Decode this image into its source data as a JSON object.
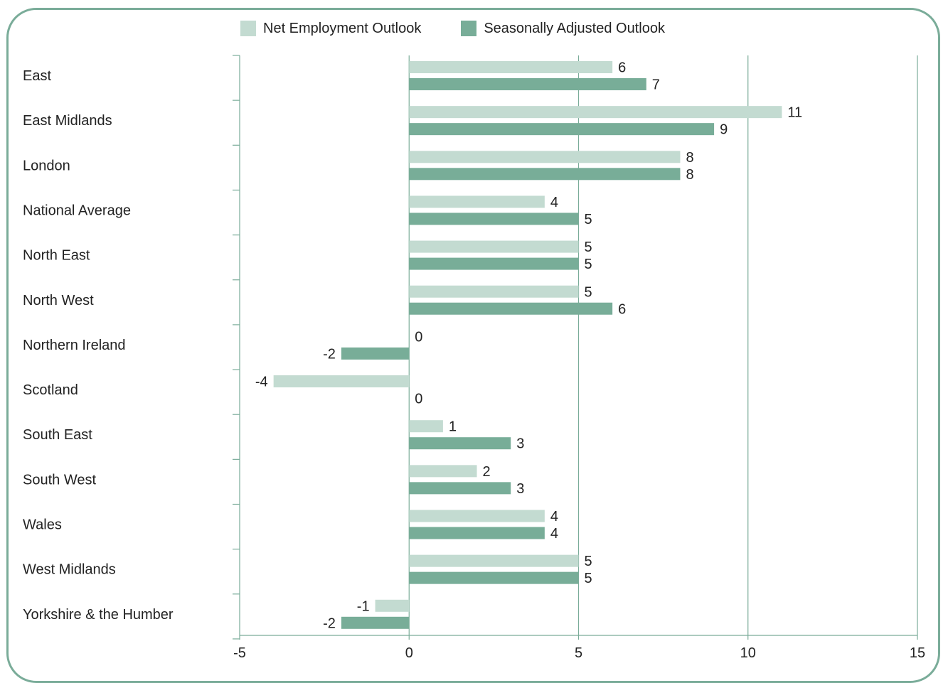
{
  "chart_data": {
    "type": "bar",
    "orientation": "horizontal",
    "categories": [
      "East",
      "East Midlands",
      "London",
      "National Average",
      "North East",
      "North West",
      "Northern Ireland",
      "Scotland",
      "South East",
      "South West",
      "Wales",
      "West Midlands",
      "Yorkshire & the Humber"
    ],
    "series": [
      {
        "name": "Net Employment Outlook",
        "color": "#c3dbd1",
        "values": [
          6,
          11,
          8,
          4,
          5,
          5,
          0,
          -4,
          1,
          2,
          4,
          5,
          -1
        ]
      },
      {
        "name": "Seasonally Adjusted Outlook",
        "color": "#78ad98",
        "values": [
          7,
          9,
          8,
          5,
          5,
          6,
          -2,
          0,
          3,
          3,
          4,
          5,
          -2
        ]
      }
    ],
    "xlim": [
      -5,
      15
    ],
    "xticks": [
      -5,
      0,
      5,
      10,
      15
    ],
    "title": "",
    "xlabel": "",
    "ylabel": "",
    "grid": "vertical",
    "legend": "top",
    "axis_color": "#7aac99"
  }
}
